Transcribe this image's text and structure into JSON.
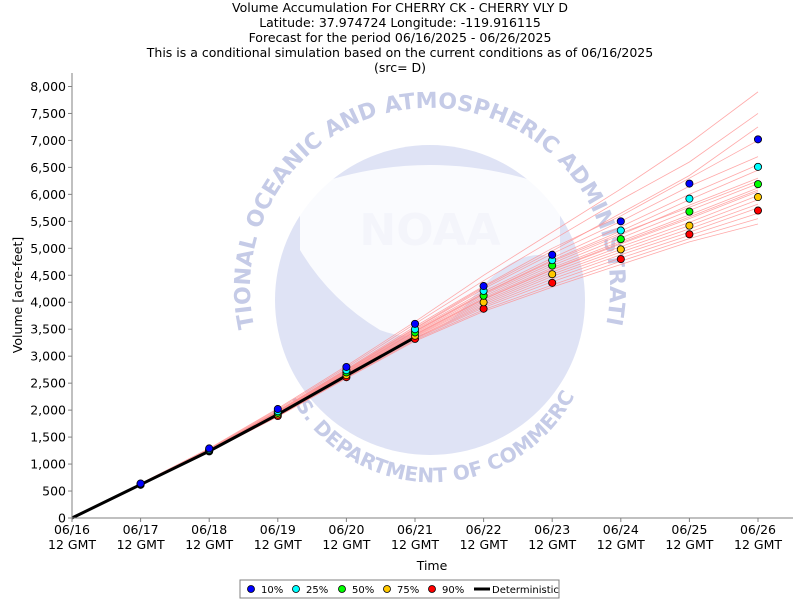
{
  "chart_data": {
    "type": "line",
    "title_lines": [
      "Volume Accumulation For CHERRY CK - CHERRY VLY D",
      "Latitude: 37.974724 Longitude: -119.916115",
      "Forecast for the period 06/16/2025 - 06/26/2025",
      "This is a conditional simulation based on the current conditions as of 06/16/2025",
      "(src= D)"
    ],
    "xlabel": "Time",
    "ylabel": "Volume [acre-feet]",
    "x_ticks": [
      "06/16",
      "06/17",
      "06/18",
      "06/19",
      "06/20",
      "06/21",
      "06/22",
      "06/23",
      "06/24",
      "06/25",
      "06/26"
    ],
    "x_tick_sublabel": "12 GMT",
    "ylim": [
      0,
      8250
    ],
    "y_ticks": [
      0,
      500,
      1000,
      1500,
      2000,
      2500,
      3000,
      3500,
      4000,
      4500,
      5000,
      5500,
      6000,
      6500,
      7000,
      7500,
      8000
    ],
    "y_tick_labels": [
      "0",
      "500",
      "1,000",
      "1,500",
      "2,000",
      "2,500",
      "3,000",
      "3,500",
      "4,000",
      "4,500",
      "5,000",
      "5,500",
      "6,000",
      "6,500",
      "7,000",
      "7,500",
      "8,000"
    ],
    "grid": false,
    "legend_position": "bottom-center",
    "deterministic": {
      "name": "Deterministic",
      "color": "#000000",
      "x": [
        0,
        1,
        2,
        3,
        4,
        5
      ],
      "values": [
        0,
        620,
        1240,
        1920,
        2640,
        3350
      ]
    },
    "series": [
      {
        "name": "10%",
        "color": "#0000ff",
        "x": [
          1,
          2,
          3,
          4,
          5,
          6,
          7,
          8,
          9,
          10
        ],
        "values": [
          640,
          1290,
          2020,
          2800,
          3600,
          4300,
          4880,
          5500,
          6200,
          7020
        ]
      },
      {
        "name": "25%",
        "color": "#00ffff",
        "x": [
          1,
          2,
          3,
          4,
          5,
          6,
          7,
          8,
          9,
          10
        ],
        "values": [
          630,
          1270,
          1980,
          2740,
          3500,
          4210,
          4780,
          5330,
          5920,
          6510
        ]
      },
      {
        "name": "50%",
        "color": "#00ff00",
        "x": [
          1,
          2,
          3,
          4,
          5,
          6,
          7,
          8,
          9,
          10
        ],
        "values": [
          625,
          1255,
          1950,
          2700,
          3440,
          4120,
          4680,
          5170,
          5680,
          6190
        ]
      },
      {
        "name": "75%",
        "color": "#ffc800",
        "x": [
          1,
          2,
          3,
          4,
          5,
          6,
          7,
          8,
          9,
          10
        ],
        "values": [
          620,
          1245,
          1920,
          2650,
          3380,
          4000,
          4520,
          4980,
          5420,
          5950
        ]
      },
      {
        "name": "90%",
        "color": "#ff0000",
        "x": [
          1,
          2,
          3,
          4,
          5,
          6,
          7,
          8,
          9,
          10
        ],
        "values": [
          615,
          1235,
          1890,
          2610,
          3320,
          3880,
          4360,
          4800,
          5260,
          5700
        ]
      }
    ],
    "ensemble_trace_color": "#ff8c8c",
    "ensemble_traces": [
      [
        640,
        1290,
        2030,
        2820,
        3640,
        4500,
        5300,
        6100,
        6950,
        7900
      ],
      [
        630,
        1280,
        2010,
        2790,
        3600,
        4400,
        5150,
        5900,
        6600,
        7500
      ],
      [
        630,
        1270,
        1990,
        2760,
        3550,
        4300,
        5000,
        5600,
        6300,
        7000
      ],
      [
        625,
        1265,
        1980,
        2740,
        3510,
        4250,
        4900,
        5500,
        6150,
        6700
      ],
      [
        625,
        1260,
        1970,
        2730,
        3490,
        4200,
        4820,
        5400,
        6000,
        6550
      ],
      [
        625,
        1258,
        1960,
        2715,
        3470,
        4170,
        4780,
        5320,
        5900,
        6450
      ],
      [
        622,
        1255,
        1950,
        2700,
        3450,
        4140,
        4720,
        5250,
        5800,
        6300
      ],
      [
        622,
        1250,
        1945,
        2690,
        3430,
        4110,
        4680,
        5190,
        5700,
        6200
      ],
      [
        620,
        1248,
        1935,
        2680,
        3410,
        4080,
        4640,
        5130,
        5620,
        6120
      ],
      [
        620,
        1245,
        1930,
        2665,
        3390,
        4050,
        4600,
        5080,
        5550,
        6050
      ],
      [
        620,
        1243,
        1925,
        2655,
        3375,
        4020,
        4560,
        5030,
        5480,
        5980
      ],
      [
        618,
        1240,
        1915,
        2640,
        3360,
        3990,
        4520,
        4980,
        5420,
        5900
      ],
      [
        618,
        1238,
        1905,
        2630,
        3340,
        3960,
        4480,
        4930,
        5360,
        5820
      ],
      [
        617,
        1236,
        1898,
        2620,
        3330,
        3930,
        4430,
        4880,
        5300,
        5750
      ],
      [
        616,
        1234,
        1892,
        2612,
        3320,
        3900,
        4380,
        4820,
        5240,
        5650
      ],
      [
        615,
        1232,
        1885,
        2600,
        3300,
        3860,
        4320,
        4760,
        5180,
        5550
      ],
      [
        614,
        1230,
        1880,
        2590,
        3280,
        3830,
        4280,
        4700,
        5120,
        5450
      ],
      [
        628,
        1262,
        1975,
        2745,
        3520,
        4280,
        4950,
        5650,
        6350,
        7250
      ],
      [
        624,
        1256,
        1955,
        2705,
        3460,
        4160,
        4760,
        5280,
        5760,
        6250
      ],
      [
        621,
        1247,
        1938,
        2672,
        3400,
        4060,
        4610,
        5100,
        5580,
        6080
      ]
    ]
  },
  "watermark": {
    "logo_text": "NOAA",
    "ring_top_text": "NATIONAL OCEANIC AND ATMOSPHERIC ADMINISTRATION",
    "ring_bottom_text": "U.S. DEPARTMENT OF COMMERCE"
  }
}
